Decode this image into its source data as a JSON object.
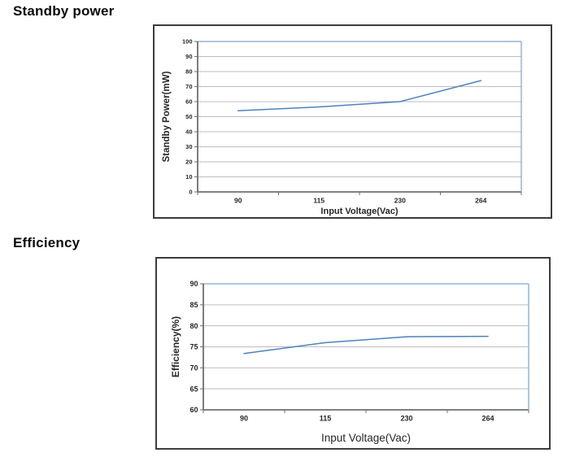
{
  "sections": [
    {
      "heading": "Standby power"
    },
    {
      "heading": "Efficiency"
    }
  ],
  "chart_data": [
    {
      "type": "line",
      "title": "Standby power",
      "categories": [
        "90",
        "115",
        "230",
        "264"
      ],
      "series": [
        {
          "name": "Standby Power",
          "values": [
            54,
            56.5,
            60,
            74
          ]
        }
      ],
      "xlabel": "Input Voltage(Vac)",
      "ylabel": "Standby Power(mW)",
      "ylim": [
        0,
        100
      ],
      "ytick_step": 10,
      "grid": true,
      "legend": "none"
    },
    {
      "type": "line",
      "title": "Efficiency",
      "categories": [
        "90",
        "115",
        "230",
        "264"
      ],
      "series": [
        {
          "name": "Efficiency",
          "values": [
            73.4,
            76,
            77.4,
            77.5
          ]
        }
      ],
      "xlabel": "Input Voltage(Vac)",
      "ylabel": "Efficiency(%)",
      "ylim": [
        60,
        90
      ],
      "ytick_step": 5,
      "grid": true,
      "legend": "none"
    }
  ],
  "colors": {
    "series_line": "#4F81BD",
    "plot_border": "#95B3D7",
    "gridline": "#BDBDBD",
    "axis": "#6e6e6e",
    "text": "#262626",
    "frame_border": "#3c3c3c"
  }
}
